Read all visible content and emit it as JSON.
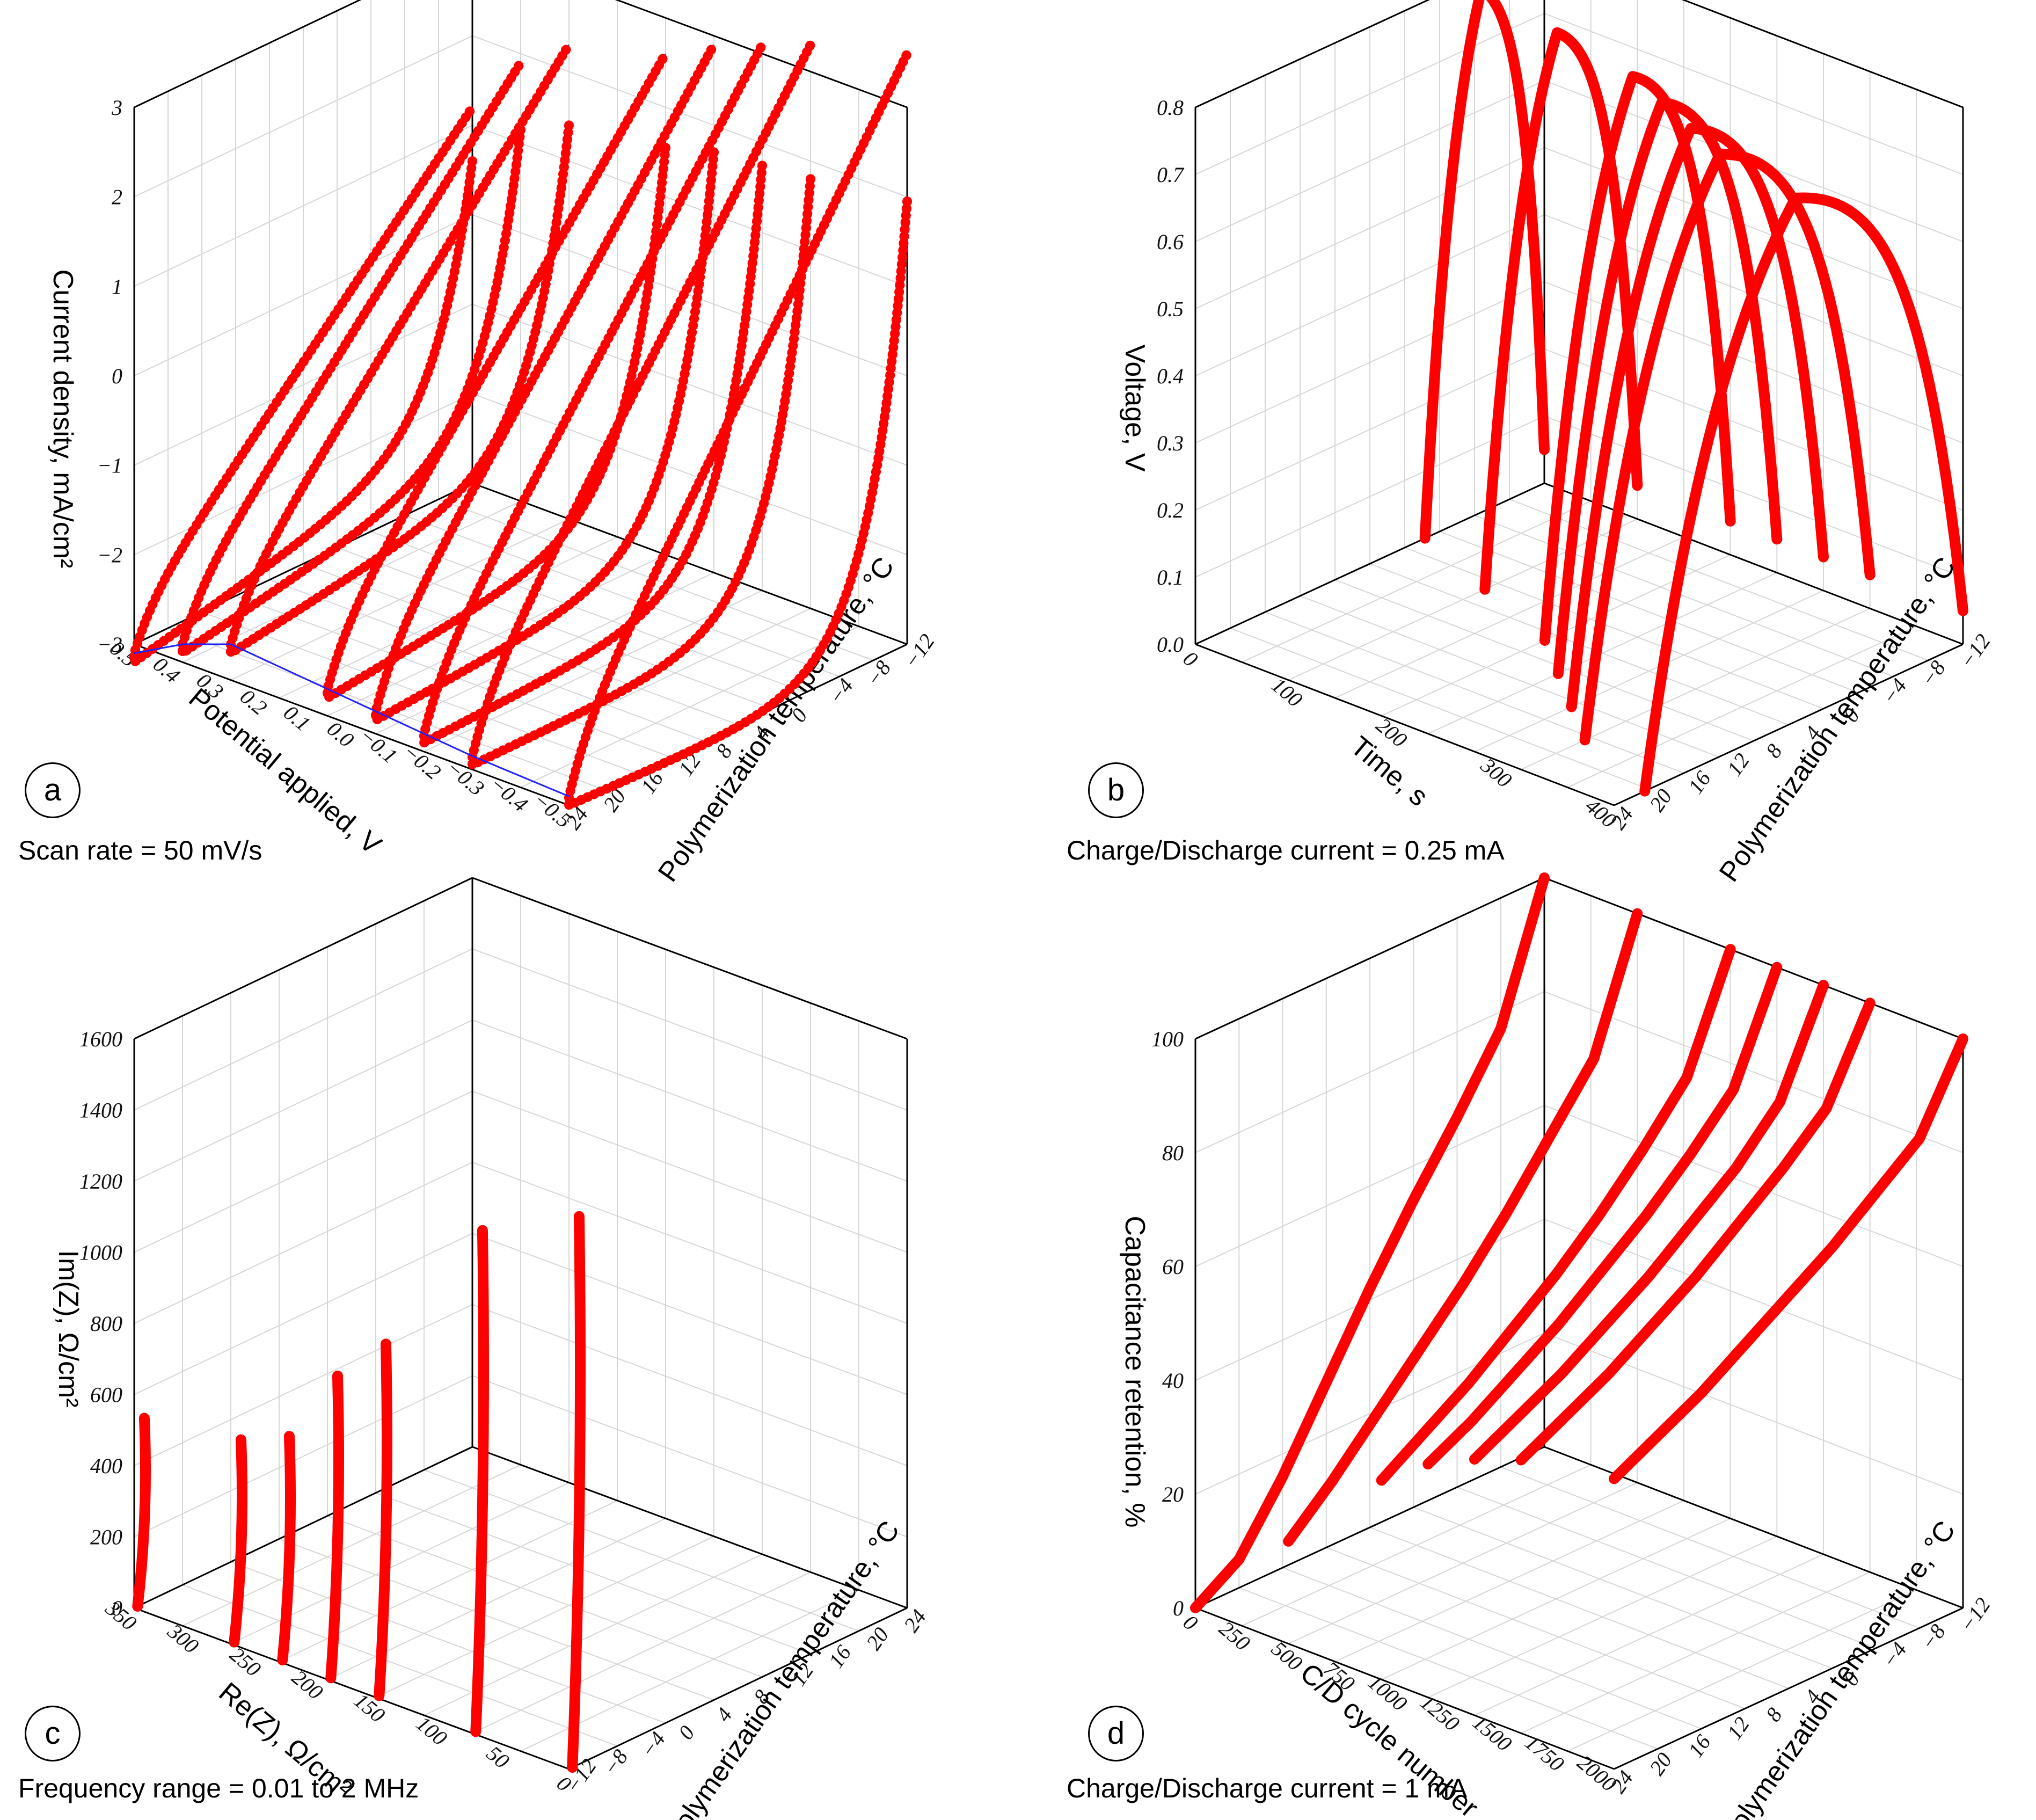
{
  "colors": {
    "series": "#ff0000",
    "connector": "#2020ff",
    "grid": "#d6d6d6",
    "frame": "#000000"
  },
  "chart_data": [
    {
      "id": "a",
      "type": "line",
      "panel_label": "a",
      "caption": "Scan rate = 50 mV/s",
      "ylabel": "Current density, mA/cm²",
      "xlabel": "Potential applied, V",
      "zlabel": "Polymerization temperature, °C",
      "x_ticks": [
        "0.5",
        "0.4",
        "0.3",
        "0.2",
        "0.1",
        "0.0",
        "−0.1",
        "−0.2",
        "−0.3",
        "−0.4",
        "−0.5"
      ],
      "y_ticks": [
        "3",
        "2",
        "1",
        "0",
        "−1",
        "−2",
        "−3"
      ],
      "z_ticks": [
        "24",
        "20",
        "16",
        "12",
        "8",
        "4",
        "0",
        "−4",
        "−8",
        "−12"
      ],
      "ylim": [
        -3,
        3
      ],
      "series": [
        {
          "name": "24",
          "values": [
            1.2,
            -3.1
          ]
        },
        {
          "name": "20",
          "values": [
            1.9,
            -2.8
          ]
        },
        {
          "name": "16",
          "values": [
            2.3,
            -2.6
          ]
        },
        {
          "name": "8",
          "values": [
            2.6,
            -2.7
          ]
        },
        {
          "name": "4",
          "values": [
            2.9,
            -2.75
          ]
        },
        {
          "name": "0",
          "values": [
            3.1,
            -2.8
          ]
        },
        {
          "name": "−4",
          "values": [
            3.3,
            -2.85
          ]
        },
        {
          "name": "−12",
          "values": [
            3.6,
            -2.9
          ]
        }
      ]
    },
    {
      "id": "b",
      "type": "line",
      "panel_label": "b",
      "caption": "Charge/Discharge current = 0.25 mA",
      "ylabel": "Voltage, V",
      "xlabel": "Time, s",
      "zlabel": "Polymerization temperature, °C",
      "x_ticks": [
        "0",
        "100",
        "200",
        "300",
        "400"
      ],
      "y_ticks": [
        "0.8",
        "0.7",
        "0.6",
        "0.5",
        "0.4",
        "0.3",
        "0.2",
        "0.1",
        "0.0"
      ],
      "z_ticks": [
        "24",
        "20",
        "16",
        "12",
        "8",
        "4",
        "0",
        "−4",
        "−8",
        "−12"
      ],
      "ylim": [
        0,
        0.8
      ],
      "series": [
        {
          "name": "24",
          "values": [
            0.78,
            0.0
          ]
        },
        {
          "name": "16",
          "values": [
            0.78,
            0.0
          ]
        },
        {
          "name": "8",
          "values": [
            0.78,
            0.0
          ]
        },
        {
          "name": "4",
          "values": [
            0.78,
            0.0
          ]
        },
        {
          "name": "0",
          "values": [
            0.78,
            0.0
          ]
        },
        {
          "name": "−4",
          "values": [
            0.78,
            0.0
          ]
        },
        {
          "name": "−12",
          "values": [
            0.78,
            0.0
          ]
        }
      ]
    },
    {
      "id": "c",
      "type": "line",
      "panel_label": "c",
      "caption": "Frequency range = 0.01 to 2 MHz",
      "ylabel": "Im(Z), Ω/cm²",
      "xlabel": "Re(Z), Ω/cm²",
      "zlabel": "Polymerization temperature, °C",
      "x_ticks": [
        "350",
        "300",
        "250",
        "200",
        "150",
        "100",
        "50",
        "0"
      ],
      "y_ticks": [
        "1600",
        "1400",
        "1200",
        "1000",
        "800",
        "600",
        "400",
        "200",
        "0"
      ],
      "z_ticks": [
        "−12",
        "−8",
        "−4",
        "0",
        "4",
        "8",
        "12",
        "16",
        "20",
        "24"
      ],
      "ylim": [
        0,
        1600
      ],
      "series": [
        {
          "name": "24",
          "values": [
            1540,
            0
          ]
        },
        {
          "name": "16",
          "values": [
            1400,
            0
          ]
        },
        {
          "name": "8",
          "values": [
            980,
            0
          ]
        },
        {
          "name": "4",
          "values": [
            840,
            0
          ]
        },
        {
          "name": "0",
          "values": [
            620,
            0
          ]
        },
        {
          "name": "−4",
          "values": [
            560,
            0
          ]
        },
        {
          "name": "−12",
          "values": [
            520,
            0
          ]
        }
      ]
    },
    {
      "id": "d",
      "type": "line",
      "panel_label": "d",
      "caption": "Charge/Discharge current = 1 mA",
      "ylabel": "Capacitance retention, %",
      "xlabel": "C/D cycle number",
      "zlabel": "Polymerization temperature, °C",
      "x_ticks": [
        "0",
        "250",
        "500",
        "750",
        "1000",
        "1250",
        "1500",
        "1750",
        "2000"
      ],
      "y_ticks": [
        "100",
        "80",
        "60",
        "40",
        "20",
        "0"
      ],
      "z_ticks": [
        "24",
        "20",
        "16",
        "12",
        "8",
        "4",
        "0",
        "−4",
        "−8",
        "−12"
      ],
      "ylim": [
        0,
        100
      ],
      "x": [
        0,
        250,
        500,
        750,
        1000,
        1250,
        1500,
        1750,
        2000
      ],
      "series": [
        {
          "name": "24",
          "values": [
            100,
            77,
            65,
            54,
            42,
            29,
            16,
            5,
            0
          ]
        },
        {
          "name": "16",
          "values": [
            100,
            78,
            68,
            58,
            49,
            41,
            33,
            25,
            18
          ]
        },
        {
          "name": "8",
          "values": [
            100,
            81,
            72,
            64,
            57,
            51,
            45,
            40,
            35
          ]
        },
        {
          "name": "4",
          "values": [
            100,
            82,
            74,
            67,
            61,
            55,
            50,
            45,
            41
          ]
        },
        {
          "name": "0",
          "values": [
            100,
            83,
            75,
            69,
            63,
            58,
            53,
            49,
            45
          ]
        },
        {
          "name": "−4",
          "values": [
            100,
            85,
            78,
            72,
            66,
            61,
            56,
            52,
            48
          ]
        },
        {
          "name": "−12",
          "values": [
            100,
            86,
            80,
            74,
            69,
            64,
            59,
            55,
            51
          ]
        }
      ]
    }
  ]
}
